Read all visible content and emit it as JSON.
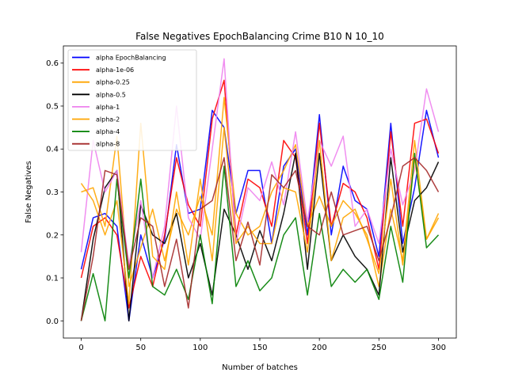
{
  "chart_data": {
    "type": "line",
    "title": "False Negatives EpochBalancing Crime B10 N 10_10",
    "xlabel": "Number of batches",
    "ylabel": "False Negatives",
    "xlim": [
      -15,
      315
    ],
    "ylim": [
      -0.04,
      0.64
    ],
    "xticks": [
      0,
      50,
      100,
      150,
      200,
      250,
      300
    ],
    "yticks": [
      0.0,
      0.1,
      0.2,
      0.3,
      0.4,
      0.5,
      0.6
    ],
    "ytick_labels": [
      "0.0",
      "0.1",
      "0.2",
      "0.3",
      "0.4",
      "0.5",
      "0.6"
    ],
    "grid": false,
    "legend_position": "top-left",
    "x": [
      0,
      10,
      20,
      30,
      40,
      50,
      60,
      70,
      80,
      90,
      100,
      110,
      120,
      130,
      140,
      150,
      160,
      170,
      180,
      190,
      200,
      210,
      220,
      230,
      240,
      250,
      260,
      270,
      280,
      290,
      300
    ],
    "series": [
      {
        "name": "alpha EpochBalancing",
        "color": "#0000ff",
        "values": [
          0.12,
          0.24,
          0.25,
          0.22,
          0.0,
          0.2,
          0.1,
          0.19,
          0.41,
          0.25,
          0.26,
          0.49,
          0.45,
          0.25,
          0.35,
          0.35,
          0.18,
          0.36,
          0.4,
          0.2,
          0.48,
          0.2,
          0.36,
          0.28,
          0.26,
          0.15,
          0.46,
          0.18,
          0.31,
          0.49,
          0.38
        ]
      },
      {
        "name": "alpha-1e-06",
        "color": "#ff0000",
        "values": [
          0.1,
          0.22,
          0.24,
          0.2,
          0.03,
          0.15,
          0.08,
          0.2,
          0.38,
          0.27,
          0.22,
          0.47,
          0.56,
          0.2,
          0.33,
          0.31,
          0.22,
          0.42,
          0.38,
          0.18,
          0.46,
          0.22,
          0.32,
          0.3,
          0.24,
          0.12,
          0.44,
          0.22,
          0.46,
          0.47,
          0.39
        ]
      },
      {
        "name": "alpha-0.25",
        "color": "#ffa500",
        "values": [
          0.3,
          0.31,
          0.22,
          0.43,
          0.08,
          0.17,
          0.26,
          0.14,
          0.26,
          0.2,
          0.29,
          0.2,
          0.52,
          0.25,
          0.2,
          0.22,
          0.3,
          0.35,
          0.41,
          0.22,
          0.29,
          0.22,
          0.28,
          0.25,
          0.2,
          0.08,
          0.26,
          0.14,
          0.42,
          0.19,
          0.25
        ]
      },
      {
        "name": "alpha-0.5",
        "color": "#000000",
        "values": [
          0.0,
          0.19,
          0.31,
          0.35,
          0.0,
          0.27,
          0.2,
          0.18,
          0.25,
          0.1,
          0.18,
          0.06,
          0.26,
          0.2,
          0.12,
          0.21,
          0.14,
          0.25,
          0.39,
          0.12,
          0.39,
          0.14,
          0.2,
          0.15,
          0.12,
          0.06,
          0.38,
          0.16,
          0.28,
          0.31,
          0.37
        ]
      },
      {
        "name": "alpha-1",
        "color": "#ee82ee",
        "values": [
          0.16,
          0.42,
          0.3,
          0.35,
          0.13,
          0.28,
          0.1,
          0.22,
          0.5,
          0.24,
          0.19,
          0.4,
          0.61,
          0.18,
          0.31,
          0.28,
          0.37,
          0.27,
          0.44,
          0.23,
          0.42,
          0.36,
          0.43,
          0.22,
          0.26,
          0.18,
          0.4,
          0.27,
          0.35,
          0.54,
          0.44
        ]
      },
      {
        "name": "alpha-2",
        "color": "#ffa500",
        "values": [
          0.32,
          0.28,
          0.2,
          0.28,
          0.04,
          0.46,
          0.15,
          0.12,
          0.3,
          0.13,
          0.33,
          0.14,
          0.45,
          0.18,
          0.22,
          0.18,
          0.18,
          0.31,
          0.3,
          0.16,
          0.42,
          0.14,
          0.24,
          0.26,
          0.19,
          0.11,
          0.33,
          0.13,
          0.38,
          0.19,
          0.24
        ]
      },
      {
        "name": "alpha-4",
        "color": "#008000",
        "values": [
          0.0,
          0.11,
          0.0,
          0.33,
          0.1,
          0.33,
          0.08,
          0.06,
          0.12,
          0.05,
          0.2,
          0.04,
          0.36,
          0.08,
          0.14,
          0.07,
          0.1,
          0.2,
          0.24,
          0.06,
          0.25,
          0.08,
          0.12,
          0.09,
          0.12,
          0.05,
          0.22,
          0.09,
          0.39,
          0.17,
          0.2
        ]
      },
      {
        "name": "alpha-8",
        "color": "#a52a2a",
        "values": [
          0.0,
          0.15,
          0.35,
          0.34,
          0.12,
          0.24,
          0.22,
          0.08,
          0.19,
          0.03,
          0.26,
          0.28,
          0.38,
          0.14,
          0.23,
          0.13,
          0.34,
          0.31,
          0.35,
          0.22,
          0.2,
          0.3,
          0.2,
          0.21,
          0.22,
          0.14,
          0.24,
          0.36,
          0.38,
          0.35,
          0.3
        ]
      }
    ]
  }
}
